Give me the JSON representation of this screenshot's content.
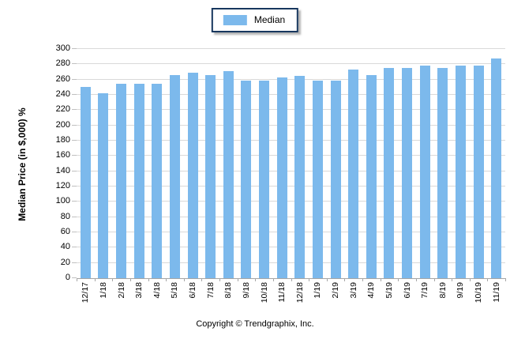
{
  "chart_data": {
    "type": "bar",
    "title": "",
    "categories": [
      "12/17",
      "1/18",
      "2/18",
      "3/18",
      "4/18",
      "5/18",
      "6/18",
      "7/18",
      "8/18",
      "9/18",
      "10/18",
      "11/18",
      "12/18",
      "1/19",
      "2/19",
      "3/19",
      "4/19",
      "5/19",
      "6/19",
      "7/19",
      "8/19",
      "9/19",
      "10/19",
      "11/19"
    ],
    "series": [
      {
        "name": "Median",
        "values": [
          250,
          242,
          255,
          255,
          255,
          266,
          269,
          266,
          271,
          259,
          259,
          263,
          265,
          259,
          259,
          273,
          266,
          275,
          275,
          278,
          275,
          278,
          278,
          288
        ]
      }
    ],
    "xlabel": "",
    "ylabel": "Median Price (in $,000) %",
    "ylim": [
      0,
      300
    ],
    "ytick_step": 20,
    "grid": true,
    "legend_position": "top-center",
    "bar_color": "#7CB9EC",
    "gridline_color": "#D9D9D9",
    "axis_color": "#A6A6A6",
    "legend_border_color": "#17375E"
  },
  "legend": {
    "label": "Median"
  },
  "y_axis": {
    "title": "Median Price (in $,000) %"
  },
  "footer": {
    "copyright": "Copyright © Trendgraphix, Inc."
  }
}
